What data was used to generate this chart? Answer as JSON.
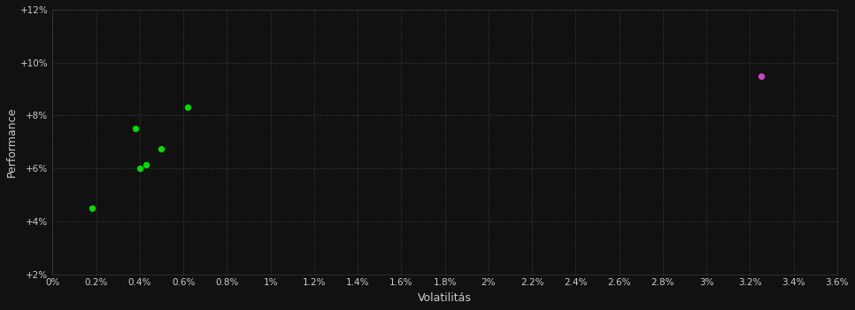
{
  "green_points": [
    [
      0.18,
      4.5
    ],
    [
      0.38,
      7.5
    ],
    [
      0.4,
      6.0
    ],
    [
      0.43,
      6.15
    ],
    [
      0.5,
      6.75
    ],
    [
      0.62,
      8.3
    ]
  ],
  "magenta_points": [
    [
      3.25,
      9.5
    ]
  ],
  "green_color": "#00dd00",
  "magenta_color": "#cc44cc",
  "background_color": "#111111",
  "grid_color": "#3a3a3a",
  "text_color": "#cccccc",
  "xlabel": "Volatilitás",
  "ylabel": "Performance",
  "xlim": [
    0.0,
    3.6
  ],
  "ylim": [
    2.0,
    12.0
  ],
  "xticks": [
    0.0,
    0.2,
    0.4,
    0.6,
    0.8,
    1.0,
    1.2,
    1.4,
    1.6,
    1.8,
    2.0,
    2.2,
    2.4,
    2.6,
    2.8,
    3.0,
    3.2,
    3.4,
    3.6
  ],
  "xtick_labels": [
    "0%",
    "0.2%",
    "0.4%",
    "0.6%",
    "0.8%",
    "1%",
    "1.2%",
    "1.4%",
    "1.6%",
    "1.8%",
    "2%",
    "2.2%",
    "2.4%",
    "2.6%",
    "2.8%",
    "3%",
    "3.2%",
    "3.4%",
    "3.6%"
  ],
  "yticks": [
    2,
    4,
    6,
    8,
    10,
    12
  ],
  "ytick_labels": [
    "+2%",
    "+4%",
    "+6%",
    "+8%",
    "+10%",
    "+12%"
  ],
  "marker_size": 18,
  "figsize": [
    9.66,
    3.5
  ],
  "dpi": 100
}
